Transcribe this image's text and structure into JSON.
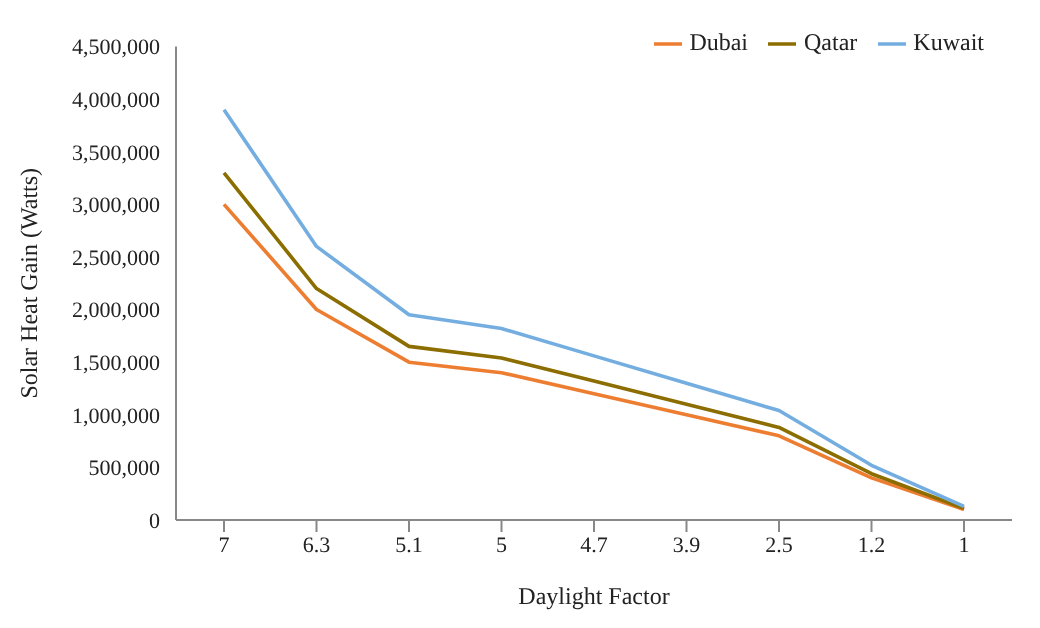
{
  "chart_data": {
    "type": "line",
    "xlabel": "Daylight Factor",
    "ylabel": "Solar Heat Gain (Watts)",
    "categories": [
      "7",
      "6.3",
      "5.1",
      "5",
      "4.7",
      "3.9",
      "2.5",
      "1.2",
      "1"
    ],
    "series": [
      {
        "name": "Dubai",
        "color": "#ed7d31",
        "values": [
          3000000,
          2000000,
          1500000,
          1400000,
          1200000,
          1000000,
          800000,
          400000,
          100000
        ]
      },
      {
        "name": "Qatar",
        "color": "#8c6d00",
        "values": [
          3300000,
          2200000,
          1650000,
          1540000,
          1320000,
          1100000,
          880000,
          440000,
          110000
        ]
      },
      {
        "name": "Kuwait",
        "color": "#74aee0",
        "values": [
          3900000,
          2600000,
          1950000,
          1820000,
          1560000,
          1300000,
          1040000,
          520000,
          130000
        ]
      }
    ],
    "ylim": [
      0,
      4500000
    ],
    "yticks": [
      0,
      {
        "value": 500000,
        "label": "500,000"
      },
      {
        "value": 1000000,
        "label": "1,000,000"
      },
      {
        "value": 1500000,
        "label": "1,500,000"
      },
      {
        "value": 2000000,
        "label": "2,000,000"
      },
      {
        "value": 2500000,
        "label": "2,500,000"
      },
      {
        "value": 3000000,
        "label": "3,000,000"
      },
      {
        "value": 3500000,
        "label": "3,500,000"
      },
      {
        "value": 4000000,
        "label": "4,000,000"
      },
      {
        "value": 4500000,
        "label": "4,500,000"
      }
    ],
    "grid": false,
    "legend": "top right",
    "marker": "none",
    "line_style": "solid"
  }
}
